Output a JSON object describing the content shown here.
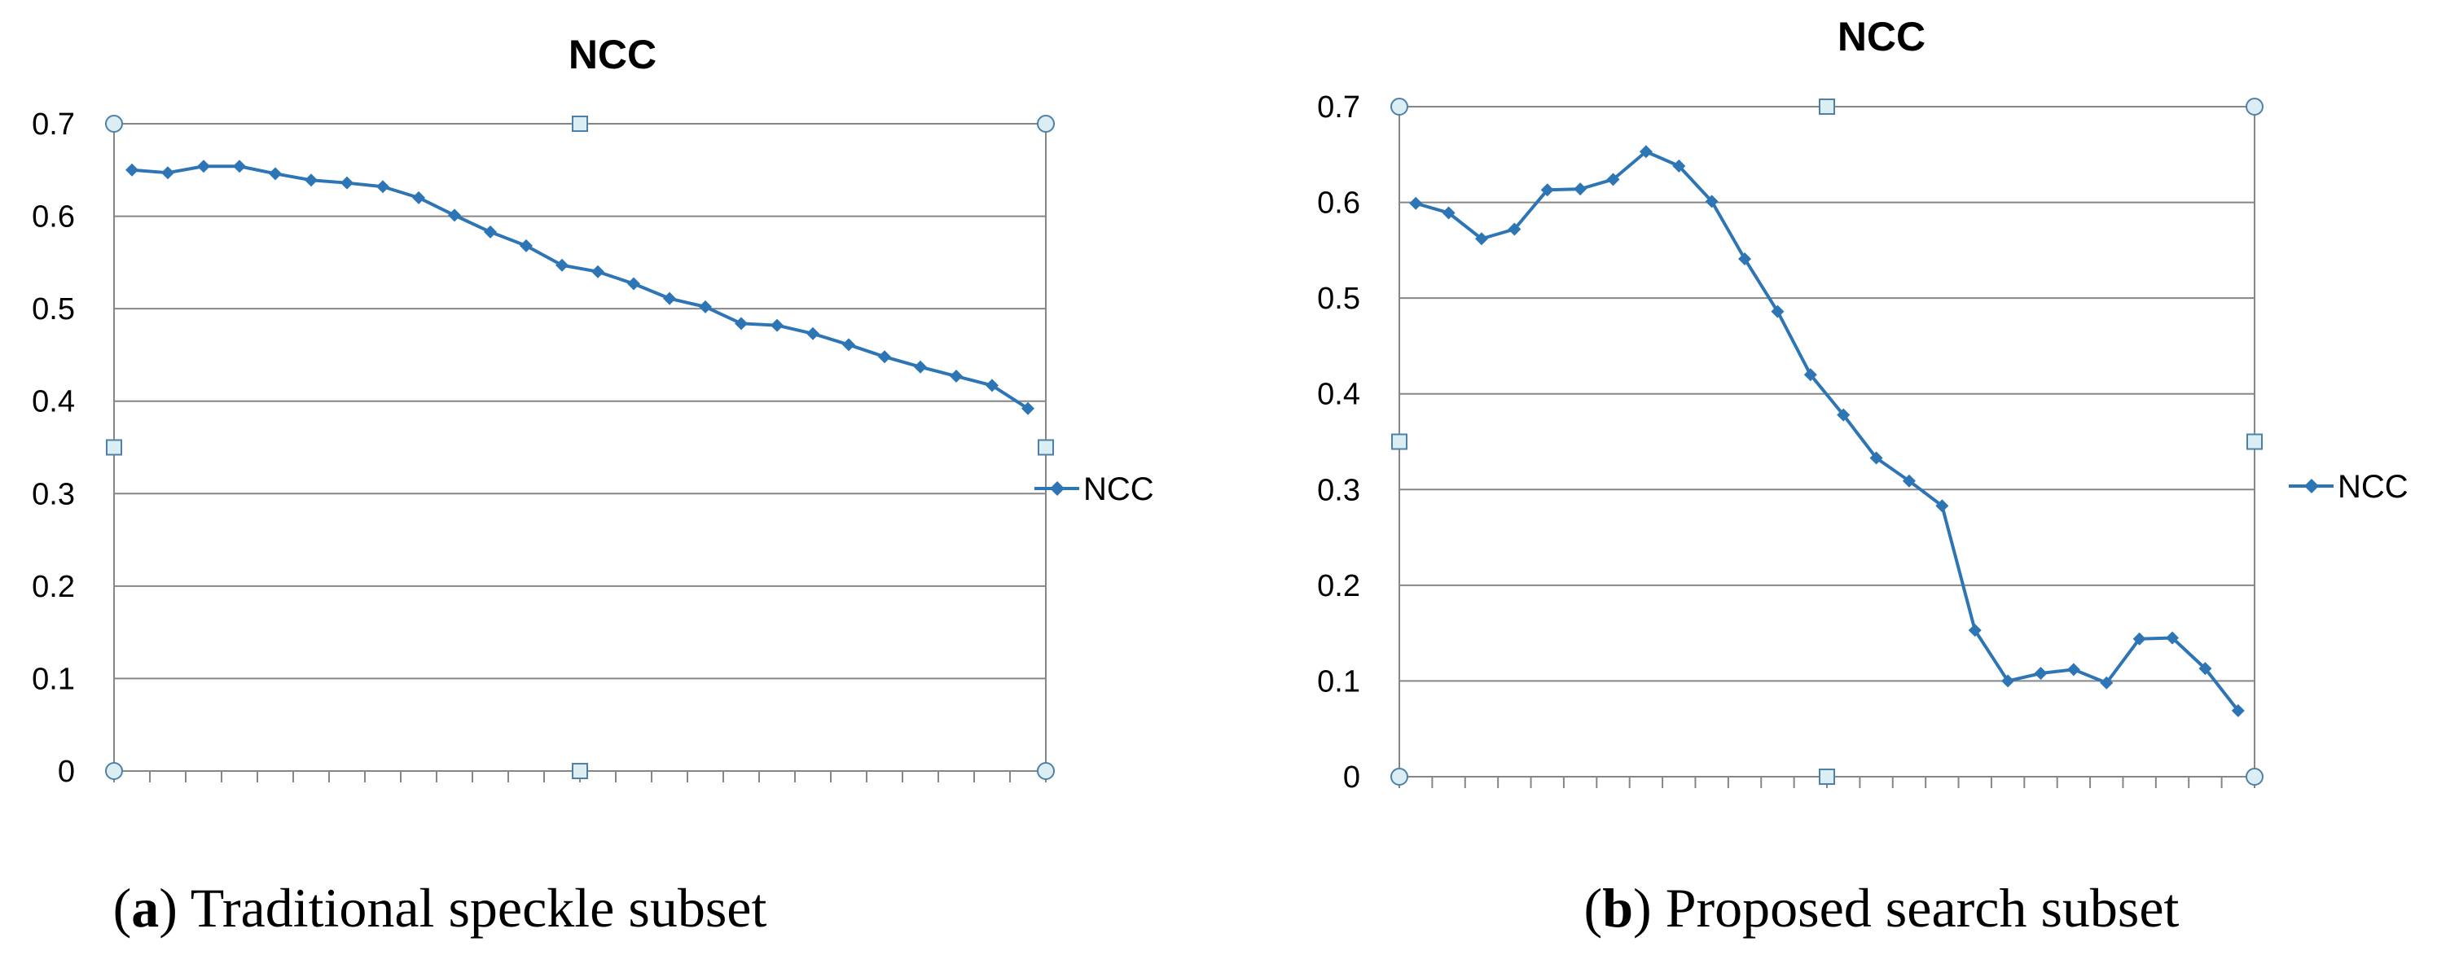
{
  "colors": {
    "series": "#2e75b6",
    "grid": "#868686",
    "axis": "#868686",
    "handle_fill": "#daeef3",
    "handle_stroke": "#4f81a8"
  },
  "chart_data": [
    {
      "type": "line",
      "title": "NCC",
      "xlabel": "",
      "ylabel": "",
      "ylim": [
        0,
        0.7
      ],
      "yticks": [
        "0",
        "0.1",
        "0.2",
        "0.3",
        "0.4",
        "0.5",
        "0.6",
        "0.7"
      ],
      "grid": true,
      "legend_position": "right",
      "num_categories": 26,
      "series": [
        {
          "name": "NCC",
          "marker": "diamond",
          "values": [
            0.65,
            0.647,
            0.654,
            0.654,
            0.646,
            0.639,
            0.636,
            0.632,
            0.62,
            0.601,
            0.583,
            0.568,
            0.547,
            0.54,
            0.527,
            0.511,
            0.502,
            0.484,
            0.482,
            0.473,
            0.461,
            0.448,
            0.437,
            0.427,
            0.417,
            0.392
          ]
        }
      ],
      "caption": {
        "letter": "a",
        "open": "(",
        "close": ")",
        "text": " Traditional speckle subset"
      }
    },
    {
      "type": "line",
      "title": "NCC",
      "xlabel": "",
      "ylabel": "",
      "ylim": [
        0,
        0.7
      ],
      "yticks": [
        "0",
        "0.1",
        "0.2",
        "0.3",
        "0.4",
        "0.5",
        "0.6",
        "0.7"
      ],
      "grid": true,
      "legend_position": "right",
      "num_categories": 26,
      "series": [
        {
          "name": "NCC",
          "marker": "diamond",
          "values": [
            0.599,
            0.589,
            0.562,
            0.572,
            0.613,
            0.614,
            0.624,
            0.653,
            0.638,
            0.601,
            0.541,
            0.486,
            0.42,
            0.378,
            0.333,
            0.309,
            0.283,
            0.153,
            0.1,
            0.108,
            0.112,
            0.098,
            0.144,
            0.145,
            0.113,
            0.069
          ]
        }
      ],
      "caption": {
        "letter": "b",
        "open": "(",
        "close": ")",
        "text": " Proposed search subset"
      }
    }
  ]
}
